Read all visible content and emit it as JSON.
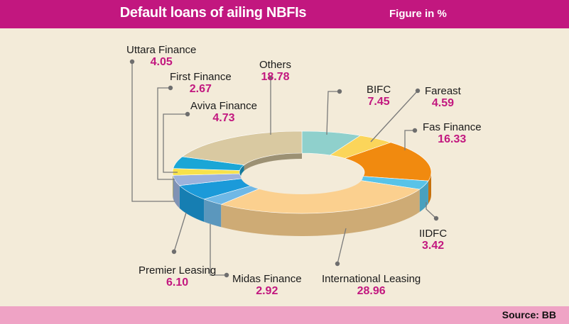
{
  "header": {
    "title": "Default loans of ailing NBFIs",
    "unit": "Figure in %"
  },
  "footer": {
    "source": "Source: BB"
  },
  "colors": {
    "header_bg": "#c2177f",
    "footer_bg": "#efa3c5",
    "page_bg": "#f3ebd9",
    "value_text": "#c2177f"
  },
  "chart_data": {
    "type": "pie",
    "style": "3d-donut",
    "title": "Default loans of ailing NBFIs",
    "unit": "Figure in %",
    "slices": [
      {
        "name": "BIFC",
        "value": 7.45,
        "color": "#8fd0cc"
      },
      {
        "name": "Fareast",
        "value": 4.59,
        "color": "#fbd55a"
      },
      {
        "name": "Fas Finance",
        "value": 16.33,
        "color": "#f18a0f"
      },
      {
        "name": "IIDFC",
        "value": 3.42,
        "color": "#58c3e8"
      },
      {
        "name": "International Leasing",
        "value": 28.96,
        "color": "#fbd08f"
      },
      {
        "name": "Midas Finance",
        "value": 2.92,
        "color": "#6fb8e6"
      },
      {
        "name": "Premier Leasing",
        "value": 6.1,
        "color": "#1b9ad9"
      },
      {
        "name": "Uttara Finance",
        "value": 4.05,
        "color": "#9cb2dc"
      },
      {
        "name": "First Finance",
        "value": 2.67,
        "color": "#f7e24c"
      },
      {
        "name": "Aviva Finance",
        "value": 4.73,
        "color": "#1aa6d6"
      },
      {
        "name": "Others",
        "value": 18.78,
        "color": "#d9c9a1"
      }
    ]
  }
}
